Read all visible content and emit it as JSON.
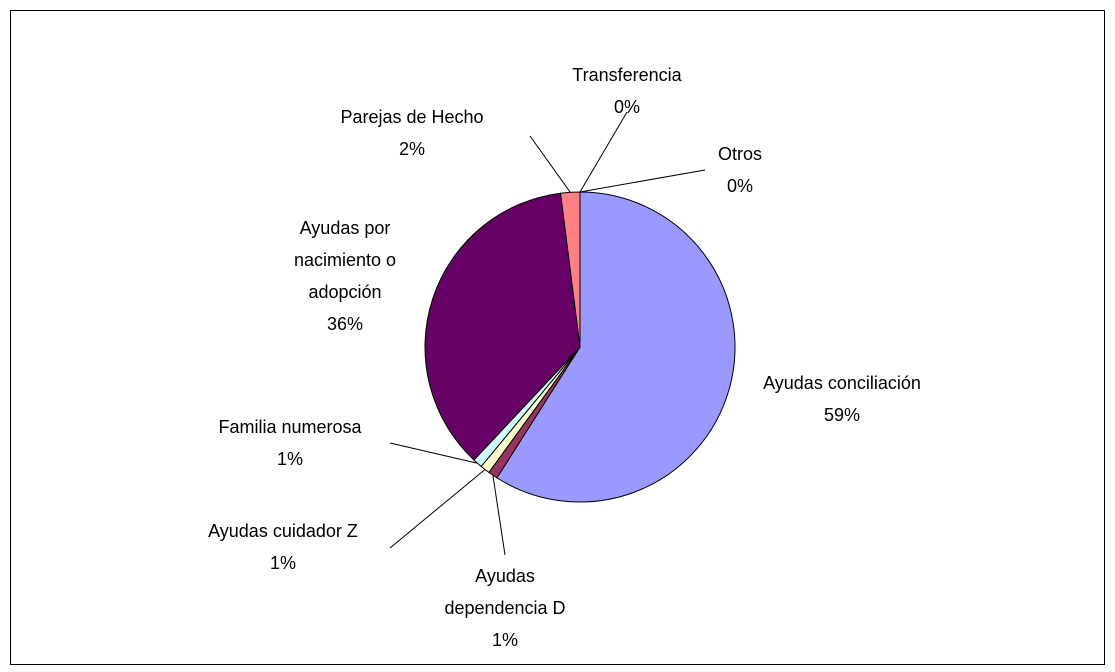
{
  "chart_data": {
    "type": "pie",
    "categories": [
      "Ayudas conciliación",
      "Ayudas dependencia D",
      "Ayudas cuidador Z",
      "Familia numerosa",
      "Ayudas por nacimiento o adopción",
      "Parejas de Hecho",
      "Transferencia",
      "Otros"
    ],
    "values": [
      59,
      1,
      1,
      1,
      36,
      2,
      0,
      0
    ],
    "value_labels": [
      "59%",
      "1%",
      "1%",
      "1%",
      "36%",
      "2%",
      "0%",
      "0%"
    ],
    "colors": [
      "#9999ff",
      "#993366",
      "#ffffcc",
      "#ccffff",
      "#660066",
      "#ff8080",
      "#0066cc",
      "#ccccff"
    ]
  }
}
